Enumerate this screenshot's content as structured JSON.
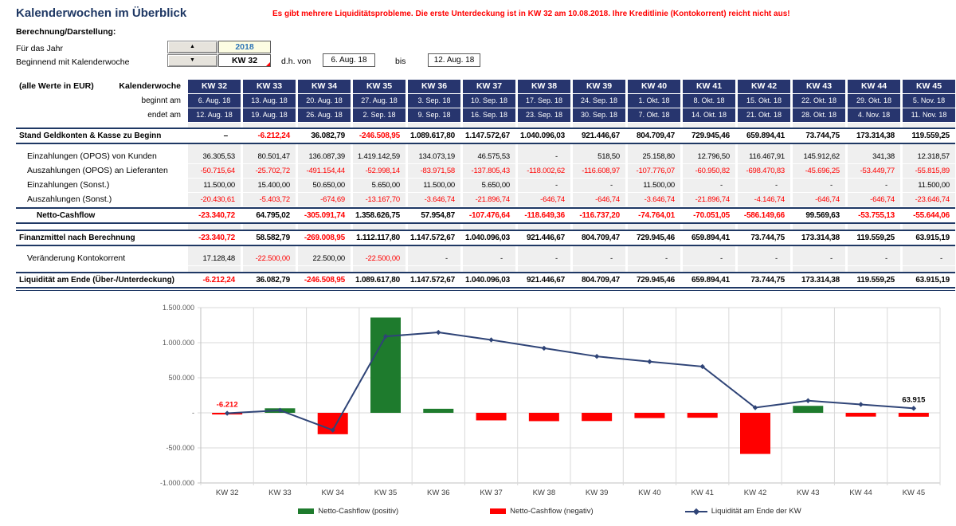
{
  "header": {
    "title": "Kalenderwochen im Überblick",
    "warning": "Es gibt mehrere Liquiditätsprobleme. Die erste Unterdeckung ist in KW 32 am 10.08.2018. Ihre Kreditlinie (Kontokorrent) reicht nicht aus!"
  },
  "controls": {
    "section_label": "Berechnung/Darstellung:",
    "year_label": "Für das Jahr",
    "year_value": "2018",
    "week_label": "Beginnend mit Kalenderwoche",
    "week_value": "KW 32",
    "up_arrow": "▲",
    "down_arrow": "▼",
    "range_prefix": "d.h. von",
    "range_from": "6. Aug. 18",
    "range_sep": "bis",
    "range_to": "12. Aug. 18"
  },
  "table": {
    "unit_note": "(alle Werte in EUR)",
    "week_header_label": "Kalenderwoche",
    "begins_label": "beginnt am",
    "ends_label": "endet am",
    "weeks": [
      "KW 32",
      "KW 33",
      "KW 34",
      "KW 35",
      "KW 36",
      "KW 37",
      "KW 38",
      "KW 39",
      "KW 40",
      "KW 41",
      "KW 42",
      "KW 43",
      "KW 44",
      "KW 45"
    ],
    "begins": [
      "6. Aug. 18",
      "13. Aug. 18",
      "20. Aug. 18",
      "27. Aug. 18",
      "3. Sep. 18",
      "10. Sep. 18",
      "17. Sep. 18",
      "24. Sep. 18",
      "1. Okt. 18",
      "8. Okt. 18",
      "15. Okt. 18",
      "22. Okt. 18",
      "29. Okt. 18",
      "5. Nov. 18"
    ],
    "ends": [
      "12. Aug. 18",
      "19. Aug. 18",
      "26. Aug. 18",
      "2. Sep. 18",
      "9. Sep. 18",
      "16. Sep. 18",
      "23. Sep. 18",
      "30. Sep. 18",
      "7. Okt. 18",
      "14. Okt. 18",
      "21. Okt. 18",
      "28. Okt. 18",
      "4. Nov. 18",
      "11. Nov. 18"
    ],
    "rows": [
      {
        "label": "Stand Geldkonten & Kasse zu Beginn",
        "style": "total",
        "values": [
          "–",
          "-6.212,24",
          "36.082,79",
          "-246.508,95",
          "1.089.617,80",
          "1.147.572,67",
          "1.040.096,03",
          "921.446,67",
          "804.709,47",
          "729.945,46",
          "659.894,41",
          "73.744,75",
          "173.314,38",
          "119.559,25"
        ]
      },
      {
        "label": "Einzahlungen (OPOS) von Kunden",
        "style": "detail",
        "values": [
          "36.305,53",
          "80.501,47",
          "136.087,39",
          "1.419.142,59",
          "134.073,19",
          "46.575,53",
          "-",
          "518,50",
          "25.158,80",
          "12.796,50",
          "116.467,91",
          "145.912,62",
          "341,38",
          "12.318,57"
        ]
      },
      {
        "label": "Auszahlungen (OPOS) an Lieferanten",
        "style": "detail",
        "values": [
          "-50.715,64",
          "-25.702,72",
          "-491.154,44",
          "-52.998,14",
          "-83.971,58",
          "-137.805,43",
          "-118.002,62",
          "-116.608,97",
          "-107.776,07",
          "-60.950,82",
          "-698.470,83",
          "-45.696,25",
          "-53.449,77",
          "-55.815,89"
        ]
      },
      {
        "label": "Einzahlungen (Sonst.)",
        "style": "detail",
        "values": [
          "11.500,00",
          "15.400,00",
          "50.650,00",
          "5.650,00",
          "11.500,00",
          "5.650,00",
          "-",
          "-",
          "11.500,00",
          "-",
          "-",
          "-",
          "-",
          "11.500,00"
        ]
      },
      {
        "label": "Auszahlungen (Sonst.)",
        "style": "detail",
        "values": [
          "-20.430,61",
          "-5.403,72",
          "-674,69",
          "-13.167,70",
          "-3.646,74",
          "-21.896,74",
          "-646,74",
          "-646,74",
          "-3.646,74",
          "-21.896,74",
          "-4.146,74",
          "-646,74",
          "-646,74",
          "-23.646,74"
        ]
      },
      {
        "label": "Netto-Cashflow",
        "style": "subtotal",
        "values": [
          "-23.340,72",
          "64.795,02",
          "-305.091,74",
          "1.358.626,75",
          "57.954,87",
          "-107.476,64",
          "-118.649,36",
          "-116.737,20",
          "-74.764,01",
          "-70.051,05",
          "-586.149,66",
          "99.569,63",
          "-53.755,13",
          "-55.644,06"
        ]
      },
      {
        "label": "Finanzmittel nach Berechnung",
        "style": "total",
        "values": [
          "-23.340,72",
          "58.582,79",
          "-269.008,95",
          "1.112.117,80",
          "1.147.572,67",
          "1.040.096,03",
          "921.446,67",
          "804.709,47",
          "729.945,46",
          "659.894,41",
          "73.744,75",
          "173.314,38",
          "119.559,25",
          "63.915,19"
        ]
      },
      {
        "label": "Veränderung Kontokorrent",
        "style": "detail",
        "values": [
          "17.128,48",
          "-22.500,00",
          "22.500,00",
          "-22.500,00",
          "-",
          "-",
          "-",
          "-",
          "-",
          "-",
          "-",
          "-",
          "-",
          "-"
        ]
      },
      {
        "label": "Liquidität am Ende (Über-/Unterdeckung)",
        "style": "total",
        "values": [
          "-6.212,24",
          "36.082,79",
          "-246.508,95",
          "1.089.617,80",
          "1.147.572,67",
          "1.040.096,03",
          "921.446,67",
          "804.709,47",
          "729.945,46",
          "659.894,41",
          "73.744,75",
          "173.314,38",
          "119.559,25",
          "63.915,19"
        ]
      }
    ]
  },
  "chart_data": {
    "type": "bar+line",
    "categories": [
      "KW 32",
      "KW 33",
      "KW 34",
      "KW 35",
      "KW 36",
      "KW 37",
      "KW 38",
      "KW 39",
      "KW 40",
      "KW 41",
      "KW 42",
      "KW 43",
      "KW 44",
      "KW 45"
    ],
    "series": [
      {
        "name": "Netto-Cashflow",
        "type": "bar",
        "values": [
          -23340.72,
          64795.02,
          -305091.74,
          1358626.75,
          57954.87,
          -107476.64,
          -118649.36,
          -116737.2,
          -74764.01,
          -70051.05,
          -586149.66,
          99569.63,
          -53755.13,
          -55644.06
        ],
        "color_positive": "#1E7B2D",
        "color_negative": "#FF0000"
      },
      {
        "name": "Liquidität am Ende der KW",
        "type": "line",
        "values": [
          -6212.24,
          36082.79,
          -246508.95,
          1089617.8,
          1147572.67,
          1040096.03,
          921446.67,
          804709.47,
          729945.46,
          659894.41,
          73744.75,
          173314.38,
          119559.25,
          63915.19
        ],
        "color": "#2F4477"
      }
    ],
    "ylim": [
      -1000000,
      1500000
    ],
    "yticks": [
      {
        "value": 1500000,
        "label": "1.500.000"
      },
      {
        "value": 1000000,
        "label": "1.000.000"
      },
      {
        "value": 500000,
        "label": "500.000"
      },
      {
        "value": 0,
        "label": "-"
      },
      {
        "value": -500000,
        "label": "-500.000"
      },
      {
        "value": -1000000,
        "label": "-1.000.000"
      }
    ],
    "annotations": [
      {
        "index": 0,
        "text": "-6.212",
        "color": "#FF0000"
      },
      {
        "index": 13,
        "text": "63.915",
        "color": "#000000"
      }
    ],
    "legend": [
      {
        "label": "Netto-Cashflow (positiv)",
        "swatch": "rect",
        "color": "#1E7B2D"
      },
      {
        "label": "Netto-Cashflow (negativ)",
        "swatch": "rect",
        "color": "#FF0000"
      },
      {
        "label": "Liquidität am Ende der KW",
        "swatch": "line",
        "color": "#2F4477"
      }
    ],
    "grid": true,
    "legend_position": "bottom",
    "title": "",
    "xlabel": "",
    "ylabel": ""
  },
  "colors": {
    "navy_header": "#27356E",
    "navy_border": "#1F3864",
    "alert_red": "#FF0000",
    "bar_green": "#1E7B2D",
    "line_blue": "#2F4477",
    "cell_gray": "#EFEFEF"
  }
}
